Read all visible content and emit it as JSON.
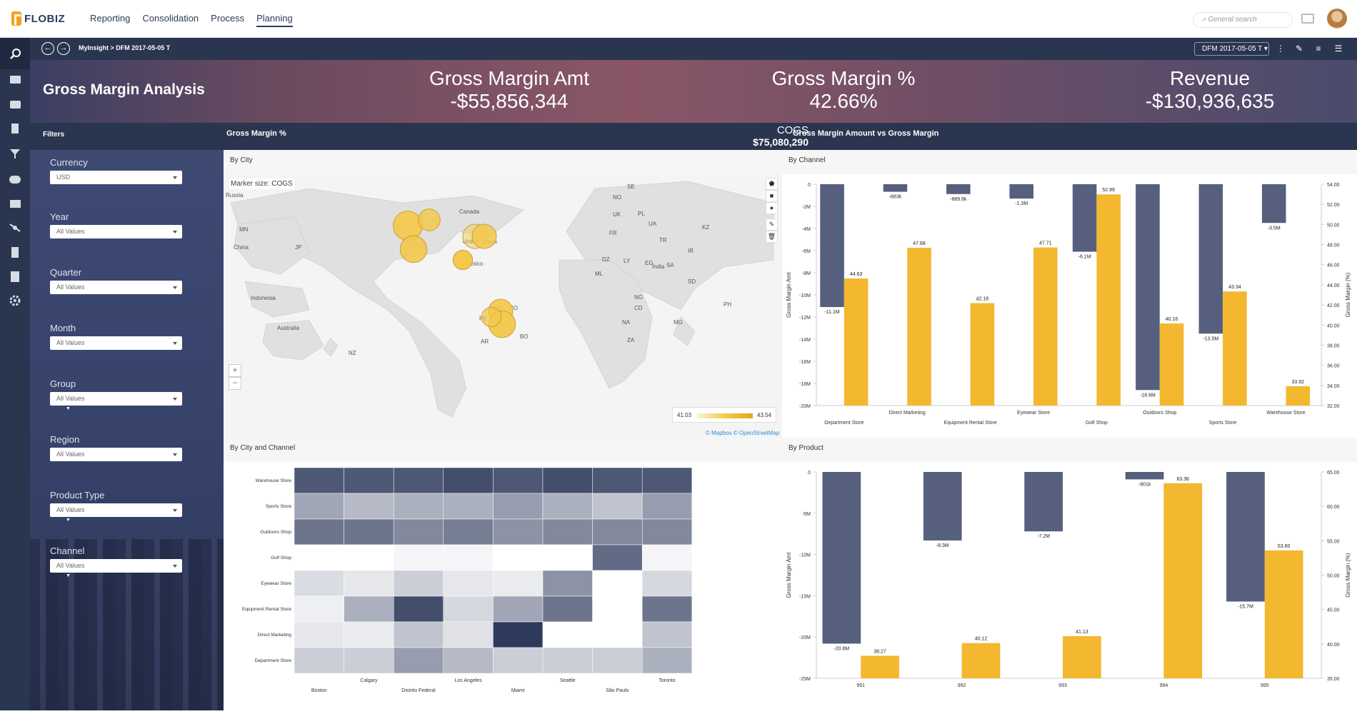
{
  "app": {
    "brand": "FLOBIZ"
  },
  "menu": [
    {
      "label": "Reporting"
    },
    {
      "label": "Consolidation"
    },
    {
      "label": "Process"
    },
    {
      "label": "Planning"
    }
  ],
  "search": {
    "placeholder": "General search"
  },
  "breadcrumb": {
    "text": "MyInsight > DFM 2017-05-05 T"
  },
  "version_select": {
    "value": "DFM 2017-05-05 T"
  },
  "dashboard": {
    "title": "Gross Margin Analysis"
  },
  "kpis": [
    {
      "label": "Gross Margin Amt",
      "value": "-$55,856,344"
    },
    {
      "label": "Gross Margin %",
      "value": "42.66%"
    },
    {
      "label": "Revenue",
      "value": "-$130,936,635"
    }
  ],
  "sections": {
    "filters": "Filters",
    "gm_pct": "Gross Margin %",
    "cogs_label": "COGS",
    "cogs_value": "$75,080,290",
    "gm_vs": "Gross Margin Amount vs Gross Margin"
  },
  "filters": [
    {
      "label": "Currency",
      "value": "USD"
    },
    {
      "label": "Year",
      "value": "All Values"
    },
    {
      "label": "Quarter",
      "value": "All Values"
    },
    {
      "label": "Month",
      "value": "All Values"
    },
    {
      "label": "Group",
      "value": "All Values"
    },
    {
      "label": "Region",
      "value": "All Values"
    },
    {
      "label": "Product Type",
      "value": "All Values"
    },
    {
      "label": "Channel",
      "value": "All Values"
    }
  ],
  "map": {
    "title": "By City",
    "marker_note": "Marker size: COGS",
    "legend_min": "41.03",
    "legend_max": "43.54",
    "attribution_1": "© Mapbox",
    "attribution_2": "© OpenStreetMap",
    "labels": [
      "Russia",
      "Canada",
      "United States",
      "Mexico",
      "China",
      "Indonesia",
      "Australia",
      "India",
      "NZ",
      "AR",
      "BR",
      "PE",
      "UK",
      "NO",
      "SE",
      "KZ",
      "MN",
      "JP",
      "LY",
      "EG",
      "NG",
      "CD",
      "SD",
      "ML",
      "DZ",
      "NA",
      "BO",
      "CO",
      "PH",
      "UA",
      "PL",
      "FR",
      "TR",
      "IR",
      "SA",
      "MG",
      "ZA"
    ],
    "colors": {
      "bubble": "#f2c94c",
      "bubble_stroke": "#c9a03a"
    }
  },
  "heatmap": {
    "title": "By City and Channel",
    "rows": [
      "Warehouse Store",
      "Sports Store",
      "Outdoors Shop",
      "Golf Shop",
      "Eyewear Store",
      "Equipment Rental Store",
      "Direct Marketing",
      "Department Store"
    ],
    "cols_top": [
      "Calgary",
      "Los Angeles",
      "Seattle",
      "Toronto"
    ],
    "cols_bottom": [
      "Boston",
      "Distrito Federal",
      "Miami",
      "São Paulo"
    ],
    "intensity": [
      [
        0.85,
        0.85,
        0.85,
        0.9,
        0.85,
        0.9,
        0.85,
        0.85
      ],
      [
        0.45,
        0.35,
        0.4,
        0.4,
        0.5,
        0.4,
        0.3,
        0.5
      ],
      [
        0.7,
        0.7,
        0.6,
        0.65,
        0.55,
        0.6,
        0.6,
        0.6
      ],
      [
        0.0,
        0.0,
        0.05,
        0.05,
        0.0,
        0.0,
        0.75,
        0.05
      ],
      [
        0.18,
        0.12,
        0.25,
        0.12,
        0.1,
        0.55,
        0.0,
        0.2
      ],
      [
        0.08,
        0.4,
        0.9,
        0.2,
        0.45,
        0.7,
        0.0,
        0.7
      ],
      [
        0.12,
        0.1,
        0.3,
        0.15,
        1.0,
        0.0,
        0.0,
        0.3
      ],
      [
        0.25,
        0.25,
        0.5,
        0.35,
        0.25,
        0.25,
        0.25,
        0.4
      ]
    ],
    "colors": {
      "low": "#ffffff",
      "high": "#2e3a5c"
    }
  },
  "chart_data": [
    {
      "type": "bar",
      "title": "By Channel",
      "categories": [
        "Department Store",
        "Direct Marketing",
        "Equipment Rental Store",
        "Eyewear Store",
        "Golf Shop",
        "Outdoors Shop",
        "Sports Store",
        "Warehouse Store"
      ],
      "series": [
        {
          "axis": "left",
          "values": [
            -11.1,
            -0.683,
            -0.8896,
            -1.3,
            -6.1,
            -18.6,
            -13.5,
            -3.5
          ],
          "labels": [
            "-11.1M",
            "-683k",
            "-889.6k",
            "-1.3M",
            "-6.1M",
            "-18.6M",
            "-13.5M",
            "-3.5M"
          ],
          "color": "#56607e"
        },
        {
          "axis": "right",
          "values": [
            44.63,
            47.68,
            42.18,
            47.71,
            52.99,
            40.16,
            43.34,
            33.92
          ],
          "labels": [
            "44.63",
            "47.68",
            "42.18",
            "47.71",
            "52.99",
            "40.16",
            "43.34",
            "33.92"
          ],
          "color": "#f3b830"
        }
      ],
      "ylabel": "Gross Margin Amt",
      "y2label": "Gross Margin (%)",
      "ylim": [
        -20,
        0
      ],
      "y2lim": [
        32,
        54
      ],
      "yticks": [
        "0",
        "-2M",
        "-4M",
        "-6M",
        "-8M",
        "-10M",
        "-12M",
        "-14M",
        "-16M",
        "-18M",
        "-20M"
      ],
      "y2ticks": [
        "32.00",
        "34.00",
        "36.00",
        "38.00",
        "40.00",
        "42.00",
        "44.00",
        "46.00",
        "48.00",
        "50.00",
        "52.00",
        "54.00"
      ]
    },
    {
      "type": "bar",
      "title": "By Product",
      "categories": [
        "991",
        "992",
        "993",
        "994",
        "995"
      ],
      "series": [
        {
          "axis": "left",
          "values": [
            -20.8,
            -8.3,
            -7.2,
            -0.901,
            -15.7
          ],
          "labels": [
            "-20.8M",
            "-8.3M",
            "-7.2M",
            "-901k",
            "-15.7M"
          ],
          "color": "#56607e"
        },
        {
          "axis": "right",
          "values": [
            38.27,
            40.12,
            41.13,
            63.36,
            53.6
          ],
          "labels": [
            "38.27",
            "40.12",
            "41.13",
            "63.36",
            "53.60"
          ],
          "color": "#f3b830"
        }
      ],
      "ylabel": "Gross Margin Amt",
      "y2label": "Gross Margin (%)",
      "ylim": [
        -25,
        0
      ],
      "y2lim": [
        35,
        65
      ],
      "yticks": [
        "0",
        "-5M",
        "-10M",
        "-15M",
        "-20M",
        "-25M"
      ],
      "y2ticks": [
        "35.00",
        "40.00",
        "45.00",
        "50.00",
        "55.00",
        "60.00",
        "65.00"
      ]
    }
  ]
}
